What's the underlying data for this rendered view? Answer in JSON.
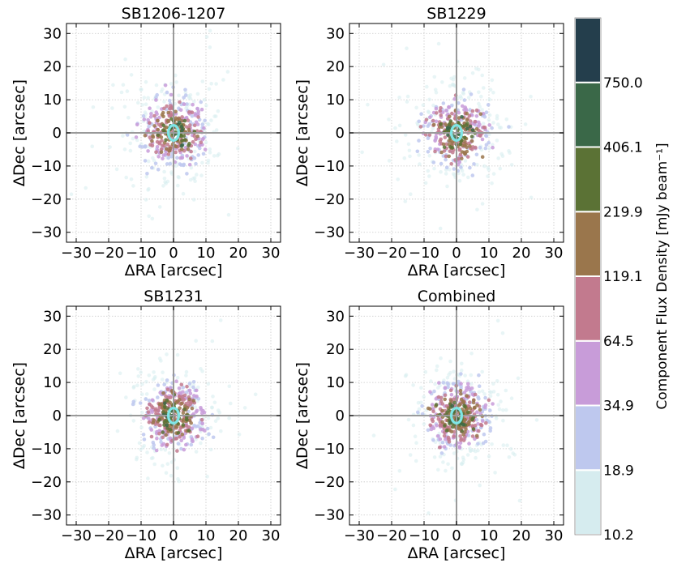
{
  "chart_data": {
    "type": "scatter",
    "axis": {
      "xlabel": "ΔRA [arcsec]",
      "ylabel": "ΔDec [arcsec]",
      "xlim": [
        -33,
        33
      ],
      "ylim": [
        -33,
        33
      ],
      "ticks": [
        -30,
        -20,
        -10,
        0,
        10,
        20,
        30
      ],
      "tick_labels": [
        "−30",
        "−20",
        "−10",
        "0",
        "10",
        "20",
        "30"
      ],
      "grid": true
    },
    "panels": [
      {
        "title": "SB1206-1207",
        "n_points": 520,
        "spread": 5.6,
        "seed": 11
      },
      {
        "title": "SB1229",
        "n_points": 480,
        "spread": 5.4,
        "seed": 23
      },
      {
        "title": "SB1231",
        "n_points": 520,
        "spread": 5.0,
        "seed": 37
      },
      {
        "title": "Combined",
        "n_points": 560,
        "spread": 5.0,
        "seed": 53
      }
    ],
    "beam_ellipse": {
      "center": [
        0,
        0
      ],
      "radius_x": 1.6,
      "radius_y": 2.3,
      "color": "#7fe6e6"
    },
    "colorbar": {
      "label": "Component Flux Density [mJy beam⁻¹]",
      "boundaries": [
        "10.2",
        "18.9",
        "34.9",
        "64.5",
        "119.1",
        "219.9",
        "406.1",
        "750.0"
      ],
      "colors": [
        "#d6ecef",
        "#bec8ee",
        "#c89cd9",
        "#c27a8e",
        "#9a764c",
        "#5b7235",
        "#3a6848",
        "#243e4c"
      ]
    }
  }
}
